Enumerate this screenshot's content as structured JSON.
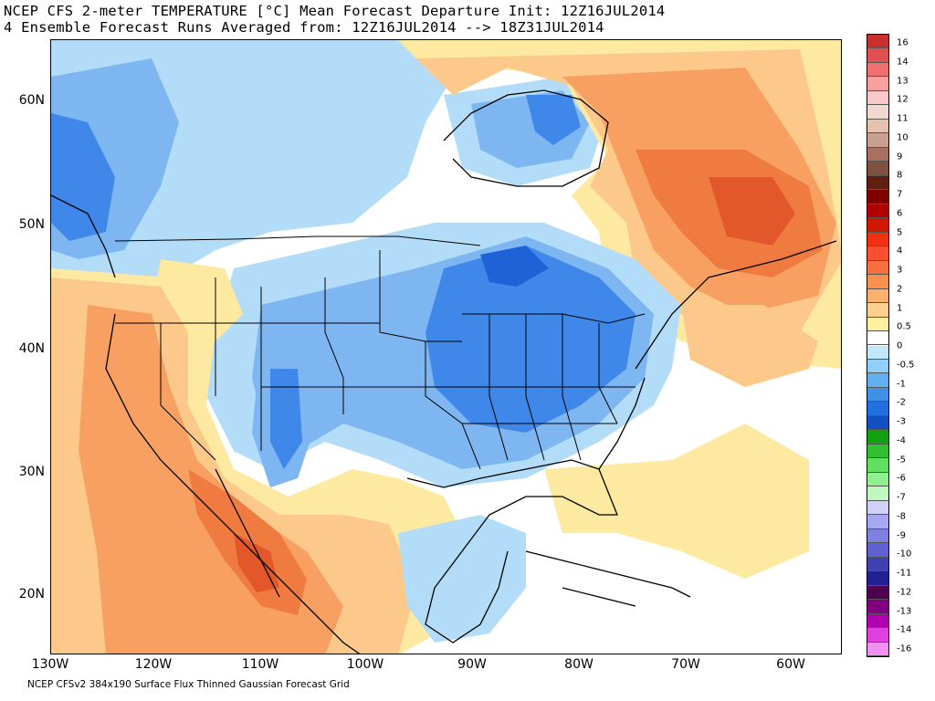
{
  "header": {
    "line1": "NCEP CFS 2-meter TEMPERATURE [°C] Mean Forecast Departure Init: 12Z16JUL2014",
    "line2": "4 Ensemble Forecast Runs Averaged from: 12Z16JUL2014 --> 18Z31JUL2014"
  },
  "footer": "NCEP CFSv2 384x190 Surface Flux Thinned Gaussian Forecast Grid",
  "axes": {
    "lat_labels": [
      "60N",
      "50N",
      "40N",
      "30N",
      "20N"
    ],
    "lon_labels": [
      "130W",
      "120W",
      "110W",
      "100W",
      "90W",
      "80W",
      "70W",
      "60W"
    ]
  },
  "colorbar": {
    "labels": [
      "16",
      "14",
      "13",
      "12",
      "11",
      "10",
      "9",
      "8",
      "7",
      "6",
      "5",
      "4",
      "3",
      "2",
      "1",
      "0.5",
      "0",
      "-0.5",
      "-1",
      "-2",
      "-3",
      "-4",
      "-5",
      "-6",
      "-7",
      "-8",
      "-9",
      "-10",
      "-11",
      "-12",
      "-13",
      "-14",
      "-16"
    ],
    "colors": [
      "#c83030",
      "#e05050",
      "#f07070",
      "#f8a0a0",
      "#fac8c8",
      "#f0d8d0",
      "#e8c0b0",
      "#c8a090",
      "#a87060",
      "#805040",
      "#602010",
      "#800000",
      "#b00000",
      "#d01800",
      "#f03010",
      "#f85030",
      "#f87040",
      "#f89050",
      "#fbb070",
      "#fdd090",
      "#fff0a0",
      "#ffffff",
      "#c0e8f8",
      "#90d0f8",
      "#60b0f0",
      "#4090e8",
      "#2070e0",
      "#1050c0",
      "#10a010",
      "#30c030",
      "#60e060",
      "#90f090",
      "#c0f8c0",
      "#d0d0f8",
      "#a8a8f0",
      "#8080e0",
      "#6060d0",
      "#4040b0",
      "#202090",
      "#500050",
      "#800080",
      "#b000b0",
      "#e040e0",
      "#f090f0"
    ],
    "palette": {
      "neg3": "#1e62d8",
      "neg2": "#3f88ea",
      "neg1": "#7eb6f2",
      "neg05": "#b3dcf8",
      "zero": "#ffffff",
      "pos05": "#fde9a0",
      "pos1": "#fcc98a",
      "pos2": "#f8a062",
      "pos3": "#f07b40",
      "pos4": "#e2582a",
      "pos5": "#c83c1c",
      "coast": "#000000"
    }
  }
}
